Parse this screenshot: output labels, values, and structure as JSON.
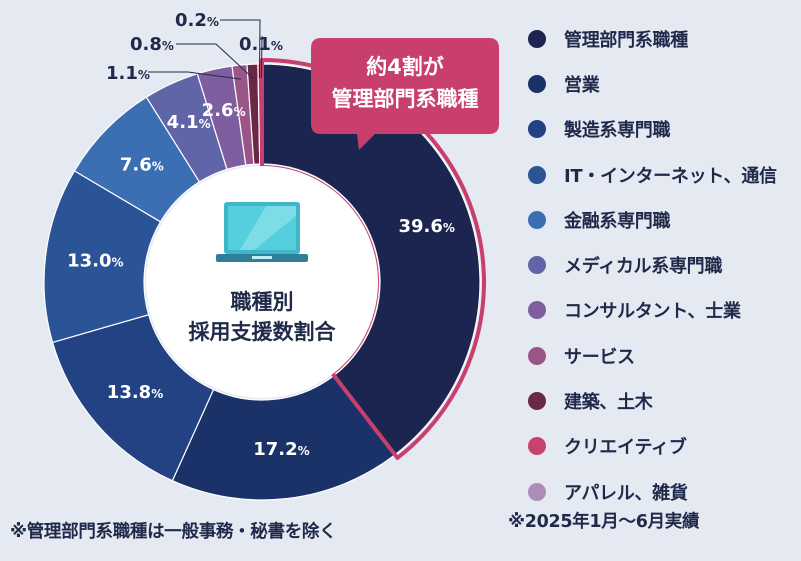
{
  "chart_data": {
    "type": "pie",
    "donut": true,
    "center_label": [
      "職種別",
      "採用支援数割合"
    ],
    "center_icon": "monitor-icon",
    "slices": [
      {
        "label": "管理部門系職種",
        "value": 39.6,
        "display": "39.6",
        "color": "#1c2550"
      },
      {
        "label": "営業",
        "value": 17.2,
        "display": "17.2",
        "color": "#1b3268"
      },
      {
        "label": "製造系専門職",
        "value": 13.8,
        "display": "13.8",
        "color": "#234283"
      },
      {
        "label": "IT・インターネット、通信",
        "value": 13.0,
        "display": "13.0",
        "color": "#2b5496"
      },
      {
        "label": "金融系専門職",
        "value": 7.6,
        "display": "7.6",
        "color": "#3b6eb3"
      },
      {
        "label": "メディカル系専門職",
        "value": 4.1,
        "display": "4.1",
        "color": "#5f65a6"
      },
      {
        "label": "コンサルタント、士業",
        "value": 2.6,
        "display": "2.6",
        "color": "#7f5e9f"
      },
      {
        "label": "サービス",
        "value": 1.1,
        "display": "1.1",
        "color": "#9a5589"
      },
      {
        "label": "建築、土木",
        "value": 0.8,
        "display": "0.8",
        "color": "#6a2845"
      },
      {
        "label": "クリエイティブ",
        "value": 0.2,
        "display": "0.2",
        "color": "#c8436b"
      },
      {
        "label": "アパレル、雑貨",
        "value": 0.1,
        "display": "0.1",
        "color": "#ad8db8"
      }
    ],
    "unit": "%",
    "highlight": {
      "index": 0,
      "color": "#c83f6d",
      "callout": [
        "約4割が",
        "管理部門系職種"
      ]
    }
  },
  "legend_title": "",
  "footnotes": {
    "left": "※管理部門系職種は一般事務・秘書を除く",
    "right": "※2025年1月〜6月実績"
  }
}
